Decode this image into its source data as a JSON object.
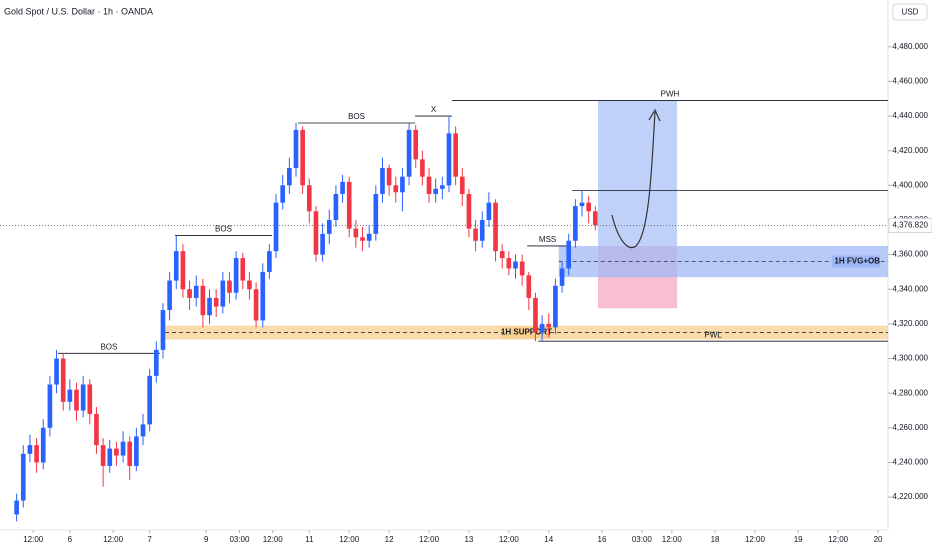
{
  "chart_data": {
    "type": "candlestick",
    "title": "Gold Spot / U.S. Dollar · 1h · OANDA",
    "currency": "USD",
    "up_color": "#2962ff",
    "down_color": "#f23645",
    "xlim": [
      -5,
      262
    ],
    "ylim": [
      4201,
      4507
    ],
    "yticks": [
      {
        "value": 4220,
        "label": "4,220.000"
      },
      {
        "value": 4240,
        "label": "4,240.000"
      },
      {
        "value": 4260,
        "label": "4,260.000"
      },
      {
        "value": 4280,
        "label": "4,280.000"
      },
      {
        "value": 4300,
        "label": "4,300.000"
      },
      {
        "value": 4320,
        "label": "4,320.000"
      },
      {
        "value": 4340,
        "label": "4,340.000"
      },
      {
        "value": 4360,
        "label": "4,360.000"
      },
      {
        "value": 4380,
        "label": "4,380.000"
      },
      {
        "value": 4400,
        "label": "4,400.000"
      },
      {
        "value": 4420,
        "label": "4,420.000"
      },
      {
        "value": 4440,
        "label": "4,440.000"
      },
      {
        "value": 4460,
        "label": "4,460.000"
      },
      {
        "value": 4480,
        "label": "4,480.000"
      }
    ],
    "xticks": [
      {
        "value": 5,
        "label": "12:00"
      },
      {
        "value": 16,
        "label": "6"
      },
      {
        "value": 29,
        "label": "12:00"
      },
      {
        "value": 40,
        "label": "7"
      },
      {
        "value": 57,
        "label": "9"
      },
      {
        "value": 67,
        "label": "03:00"
      },
      {
        "value": 77,
        "label": "12:00"
      },
      {
        "value": 88,
        "label": "11"
      },
      {
        "value": 100,
        "label": "12:00"
      },
      {
        "value": 112,
        "label": "12"
      },
      {
        "value": 124,
        "label": "12:00"
      },
      {
        "value": 136,
        "label": "13"
      },
      {
        "value": 148,
        "label": "12:00"
      },
      {
        "value": 160,
        "label": "14"
      },
      {
        "value": 176,
        "label": "16"
      },
      {
        "value": 188,
        "label": "03:00"
      },
      {
        "value": 197,
        "label": "12:00"
      },
      {
        "value": 210,
        "label": "18"
      },
      {
        "value": 222,
        "label": "12:00"
      },
      {
        "value": 235,
        "label": "19"
      },
      {
        "value": 247,
        "label": "12:00"
      },
      {
        "value": 259,
        "label": "20"
      }
    ],
    "x": [
      0,
      2,
      4,
      6,
      8,
      10,
      12,
      14,
      16,
      18,
      20,
      22,
      24,
      26,
      28,
      30,
      32,
      34,
      36,
      38,
      40,
      42,
      44,
      46,
      48,
      50,
      52,
      54,
      56,
      58,
      60,
      62,
      64,
      66,
      68,
      70,
      72,
      74,
      76,
      78,
      80,
      82,
      84,
      86,
      88,
      90,
      92,
      94,
      96,
      98,
      100,
      102,
      104,
      106,
      108,
      110,
      112,
      114,
      116,
      118,
      120,
      122,
      124,
      126,
      128,
      130,
      132,
      134,
      136,
      138,
      140,
      142,
      144,
      146,
      148,
      150,
      152,
      154,
      156,
      158,
      160,
      162,
      164,
      166,
      168,
      170,
      172,
      174
    ],
    "open": [
      4210,
      4218,
      4245,
      4250,
      4240,
      4260,
      4285,
      4300,
      4275,
      4282,
      4270,
      4285,
      4268,
      4250,
      4238,
      4248,
      4244,
      4252,
      4238,
      4255,
      4262,
      4290,
      4305,
      4328,
      4345,
      4362,
      4340,
      4335,
      4342,
      4325,
      4335,
      4330,
      4345,
      4338,
      4358,
      4345,
      4340,
      4322,
      4350,
      4362,
      4390,
      4400,
      4410,
      4432,
      4400,
      4385,
      4360,
      4372,
      4380,
      4395,
      4402,
      4375,
      4370,
      4368,
      4372,
      4395,
      4410,
      4400,
      4396,
      4405,
      4432,
      4415,
      4405,
      4395,
      4398,
      4400,
      4430,
      4405,
      4395,
      4375,
      4368,
      4380,
      4390,
      4362,
      4358,
      4352,
      4356,
      4348,
      4335,
      4315,
      4320,
      4318,
      4342,
      4352,
      4368,
      4388,
      4390,
      4385
    ],
    "high": [
      4222,
      4250,
      4256,
      4254,
      4265,
      4290,
      4305,
      4303,
      4288,
      4286,
      4290,
      4288,
      4272,
      4254,
      4253,
      4252,
      4258,
      4255,
      4260,
      4268,
      4294,
      4310,
      4332,
      4350,
      4371,
      4366,
      4345,
      4348,
      4346,
      4340,
      4340,
      4350,
      4350,
      4362,
      4361,
      4350,
      4344,
      4355,
      4366,
      4395,
      4406,
      4416,
      4436,
      4434,
      4404,
      4388,
      4378,
      4386,
      4400,
      4406,
      4405,
      4380,
      4376,
      4377,
      4400,
      4416,
      4412,
      4405,
      4410,
      4436,
      4435,
      4420,
      4410,
      4404,
      4405,
      4440,
      4434,
      4410,
      4398,
      4380,
      4385,
      4396,
      4392,
      4366,
      4362,
      4360,
      4360,
      4350,
      4338,
      4325,
      4326,
      4346,
      4356,
      4372,
      4392,
      4397,
      4394,
      4388
    ],
    "low": [
      4206,
      4214,
      4240,
      4234,
      4236,
      4255,
      4280,
      4270,
      4270,
      4264,
      4266,
      4262,
      4245,
      4226,
      4234,
      4238,
      4240,
      4230,
      4235,
      4250,
      4258,
      4286,
      4300,
      4322,
      4340,
      4335,
      4328,
      4330,
      4318,
      4320,
      4324,
      4326,
      4332,
      4334,
      4340,
      4334,
      4318,
      4318,
      4346,
      4358,
      4386,
      4395,
      4405,
      4395,
      4378,
      4356,
      4356,
      4366,
      4376,
      4390,
      4370,
      4364,
      4362,
      4364,
      4368,
      4390,
      4394,
      4390,
      4385,
      4400,
      4410,
      4400,
      4390,
      4390,
      4392,
      4396,
      4400,
      4388,
      4370,
      4362,
      4364,
      4376,
      4356,
      4352,
      4348,
      4346,
      4342,
      4328,
      4310,
      4310,
      4312,
      4314,
      4338,
      4348,
      4364,
      4382,
      4378,
      4374
    ],
    "close": [
      4218,
      4245,
      4250,
      4240,
      4260,
      4285,
      4300,
      4275,
      4282,
      4270,
      4285,
      4268,
      4250,
      4238,
      4248,
      4244,
      4252,
      4238,
      4255,
      4262,
      4290,
      4305,
      4328,
      4345,
      4362,
      4340,
      4335,
      4342,
      4325,
      4335,
      4330,
      4345,
      4338,
      4358,
      4345,
      4340,
      4322,
      4350,
      4362,
      4390,
      4400,
      4410,
      4432,
      4400,
      4385,
      4360,
      4372,
      4380,
      4395,
      4402,
      4375,
      4370,
      4368,
      4372,
      4395,
      4410,
      4400,
      4396,
      4405,
      4432,
      4415,
      4405,
      4395,
      4398,
      4400,
      4430,
      4405,
      4395,
      4375,
      4368,
      4380,
      4390,
      4362,
      4358,
      4352,
      4356,
      4348,
      4335,
      4315,
      4320,
      4318,
      4342,
      4352,
      4368,
      4388,
      4390,
      4385,
      4377
    ],
    "last_price": {
      "value": 4376.82,
      "label": "4,376.820"
    },
    "levels": [
      {
        "label": "BOS",
        "value": 4303,
        "x": [
          12.4,
          43.1
        ]
      },
      {
        "label": "BOS",
        "value": 4371,
        "x": [
          47.6,
          76.8
        ]
      },
      {
        "label": "BOS",
        "value": 4436,
        "x": [
          84.6,
          119.8
        ]
      },
      {
        "label": "X",
        "value": 4440,
        "x": [
          119.8,
          130.9
        ]
      },
      {
        "label": "PWH",
        "value": 4449,
        "x": [
          130.9,
          262
        ]
      },
      {
        "value": 4397,
        "x": [
          167,
          262
        ]
      },
      {
        "label": "MSS",
        "value": 4365,
        "x": [
          153.5,
          165.8
        ]
      },
      {
        "label": "PWL",
        "value": 4310,
        "x": [
          156.8,
          262
        ]
      }
    ],
    "zones": [
      {
        "range": [
          4329,
          4365
        ],
        "x": [
          174.8,
          198.6
        ],
        "color": "#f7a8c4"
      },
      {
        "range": [
          4365,
          4449
        ],
        "x": [
          174.8,
          198.6
        ],
        "color": "#a9c1f7"
      },
      {
        "label": "1H FVG+OB",
        "label_align": "right",
        "range": [
          4347,
          4365
        ],
        "mid": 4356,
        "x": [
          163,
          262
        ],
        "color": "#9fb8f5"
      },
      {
        "label": "1H SUPPORT",
        "label_align": "center",
        "range": [
          4311,
          4319
        ],
        "mid": 4315,
        "x": [
          44.6,
          262
        ],
        "color": "#f8cf8f"
      }
    ]
  }
}
